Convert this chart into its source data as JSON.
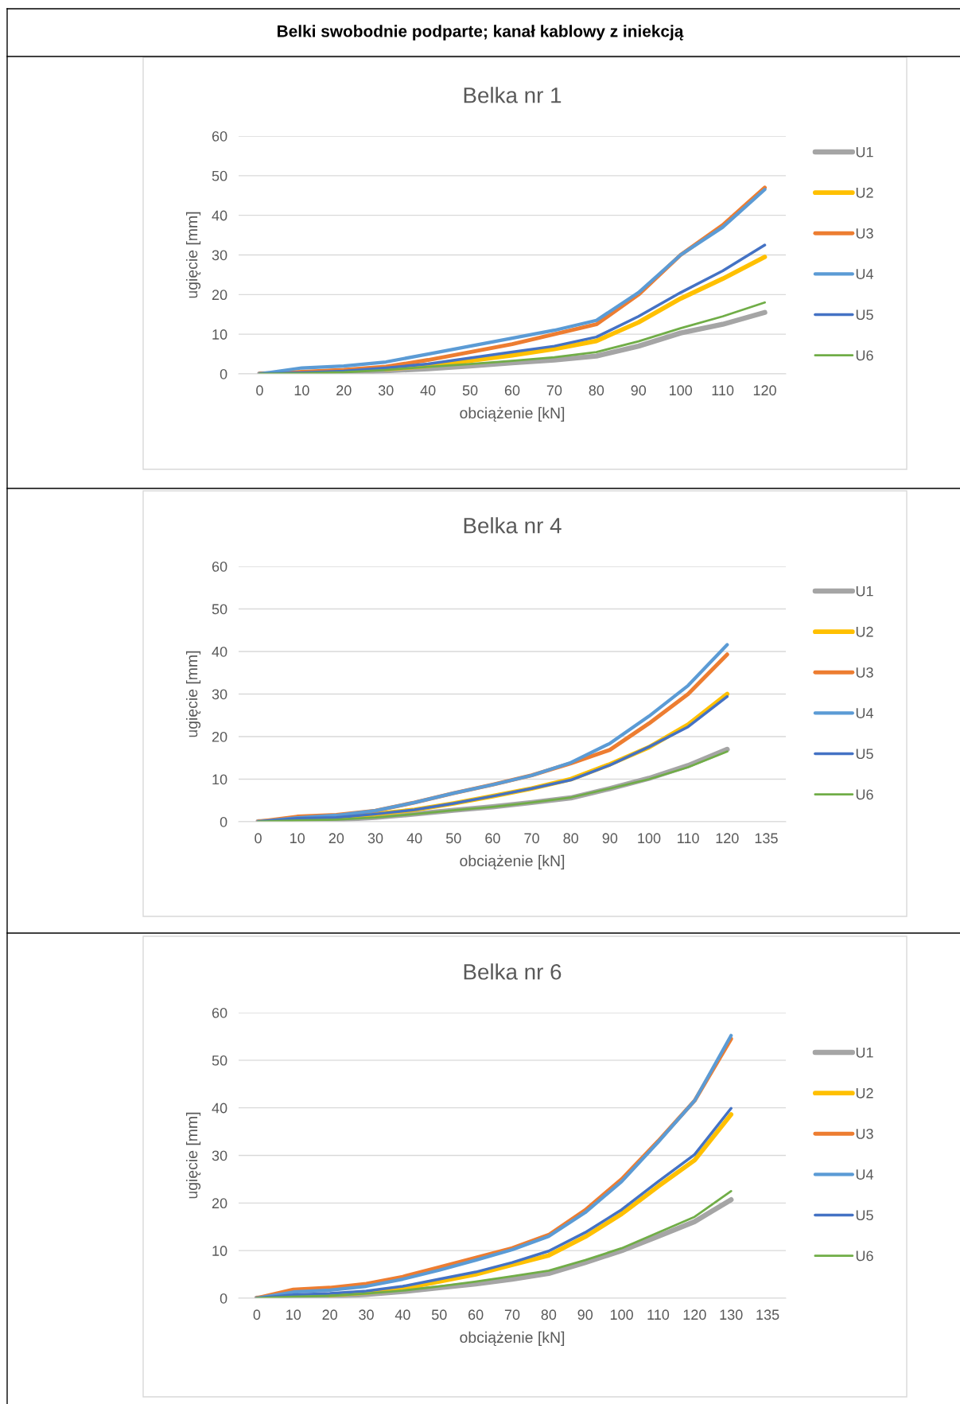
{
  "chart_data": [
    {
      "type": "other",
      "title": "Belki swobodnie podparte; kanał kablowy z iniekcją"
    },
    {
      "type": "line",
      "title": "Belka nr 1",
      "xlabel": "obciążenie [kN]",
      "ylabel": "ugięcie [mm]",
      "categories": [
        "0",
        "10",
        "20",
        "30",
        "40",
        "50",
        "60",
        "70",
        "80",
        "90",
        "100",
        "110",
        "120"
      ],
      "ylim": [
        0,
        60
      ],
      "yticks": [
        0,
        10,
        20,
        30,
        40,
        50,
        60
      ],
      "grid": "y",
      "legend": "right",
      "marker": "none",
      "line_style": "solid",
      "series": [
        {
          "name": "U1",
          "color": "#a5a5a5",
          "values": [
            0,
            0.1,
            0.3,
            0.8,
            1.3,
            2,
            2.8,
            3.5,
            4.5,
            7,
            10.3,
            12.5,
            15.5
          ]
        },
        {
          "name": "U2",
          "color": "#ffc000",
          "values": [
            null,
            null,
            null,
            1.2,
            2,
            3.3,
            4.7,
            6.3,
            8.3,
            13,
            19,
            24,
            29.5
          ]
        },
        {
          "name": "U3",
          "color": "#ed7d31",
          "values": [
            0,
            0.5,
            1,
            1.8,
            3.5,
            5.5,
            7.5,
            10,
            12.5,
            20,
            30,
            37.5,
            47
          ]
        },
        {
          "name": "U4",
          "color": "#5b9bd5",
          "values": [
            0,
            1.5,
            2,
            3,
            5,
            7,
            9,
            11,
            13.5,
            20.5,
            30,
            37,
            46.5
          ]
        },
        {
          "name": "U5",
          "color": "#4472c4",
          "values": [
            0,
            0.3,
            0.7,
            1.5,
            2.5,
            4,
            5.5,
            7,
            9.3,
            14.5,
            20.5,
            26,
            32.5
          ]
        },
        {
          "name": "U6",
          "color": "#70ad47",
          "values": [
            0,
            0.1,
            0.4,
            1,
            1.8,
            2.5,
            3.3,
            4.2,
            5.5,
            8.2,
            11.5,
            14.5,
            18
          ]
        }
      ]
    },
    {
      "type": "line",
      "title": "Belka nr 4",
      "xlabel": "obciążenie [kN]",
      "ylabel": "ugięcie [mm]",
      "categories": [
        "0",
        "10",
        "20",
        "30",
        "40",
        "50",
        "60",
        "70",
        "80",
        "90",
        "100",
        "110",
        "120",
        "135"
      ],
      "ylim": [
        0,
        60
      ],
      "yticks": [
        0,
        10,
        20,
        30,
        40,
        50,
        60
      ],
      "grid": "y",
      "legend": "right",
      "marker": "none",
      "line_style": "solid",
      "series": [
        {
          "name": "U1",
          "color": "#a5a5a5",
          "values": [
            0,
            0.3,
            0.5,
            1,
            1.8,
            2.7,
            3.5,
            4.5,
            5.6,
            7.8,
            10.2,
            13.2,
            17,
            null
          ]
        },
        {
          "name": "U2",
          "color": "#ffc000",
          "values": [
            null,
            null,
            1,
            1.8,
            2.8,
            4.3,
            6,
            7.8,
            10,
            13.5,
            17.5,
            22.8,
            30,
            null
          ]
        },
        {
          "name": "U3",
          "color": "#ed7d31",
          "values": [
            0,
            1.2,
            1.6,
            2.6,
            4.5,
            6.7,
            8.7,
            10.9,
            13.7,
            16.9,
            23.1,
            30,
            39.3,
            null
          ]
        },
        {
          "name": "U4",
          "color": "#5b9bd5",
          "values": [
            0,
            0.9,
            1.5,
            2.6,
            4.5,
            6.7,
            8.7,
            10.9,
            13.9,
            18.4,
            24.8,
            32,
            41.6,
            null
          ]
        },
        {
          "name": "U5",
          "color": "#4472c4",
          "values": [
            0,
            0.8,
            1,
            1.8,
            2.8,
            4.3,
            6,
            7.8,
            9.8,
            13.3,
            17.6,
            22.3,
            29.4,
            null
          ]
        },
        {
          "name": "U6",
          "color": "#70ad47",
          "values": [
            0,
            0.3,
            0.5,
            1,
            1.8,
            2.7,
            3.5,
            4.5,
            5.7,
            7.8,
            10,
            12.8,
            16.5,
            null
          ]
        }
      ]
    },
    {
      "type": "line",
      "title": "Belka nr 6",
      "xlabel": "obciążenie [kN]",
      "ylabel": "ugięcie [mm]",
      "categories": [
        "0",
        "10",
        "20",
        "30",
        "40",
        "50",
        "60",
        "70",
        "80",
        "90",
        "100",
        "110",
        "120",
        "130",
        "135"
      ],
      "ylim": [
        0,
        60
      ],
      "yticks": [
        0,
        10,
        20,
        30,
        40,
        50,
        60
      ],
      "grid": "y",
      "legend": "right",
      "marker": "none",
      "line_style": "solid",
      "series": [
        {
          "name": "U1",
          "color": "#a5a5a5",
          "values": [
            0,
            0.2,
            0.4,
            0.8,
            1.4,
            2.2,
            3,
            4,
            5.2,
            7.5,
            10,
            13,
            16.1,
            20.7,
            null
          ]
        },
        {
          "name": "U2",
          "color": "#ffc000",
          "values": [
            null,
            null,
            0.7,
            1.2,
            2,
            3.5,
            5,
            7,
            9,
            12.9,
            17.7,
            23.5,
            29,
            38.6,
            null
          ]
        },
        {
          "name": "U3",
          "color": "#ed7d31",
          "values": [
            0,
            1.8,
            2.2,
            3,
            4.5,
            6.5,
            8.5,
            10.5,
            13.3,
            18.5,
            25,
            33,
            41.5,
            54.5,
            null
          ]
        },
        {
          "name": "U4",
          "color": "#5b9bd5",
          "values": [
            0,
            1.3,
            1.7,
            2.5,
            4,
            5.9,
            8,
            10.2,
            13,
            18,
            24.5,
            32.8,
            41.5,
            55.2,
            null
          ]
        },
        {
          "name": "U5",
          "color": "#4472c4",
          "values": [
            0,
            0.7,
            1,
            1.5,
            2.5,
            4,
            5.5,
            7.5,
            9.9,
            13.8,
            18.6,
            24.5,
            30.2,
            39.9,
            null
          ]
        },
        {
          "name": "U6",
          "color": "#70ad47",
          "values": [
            0,
            0.3,
            0.5,
            1,
            1.6,
            2.5,
            3.5,
            4.6,
            5.8,
            8,
            10.5,
            13.8,
            17.1,
            22.5,
            null
          ]
        }
      ]
    }
  ]
}
